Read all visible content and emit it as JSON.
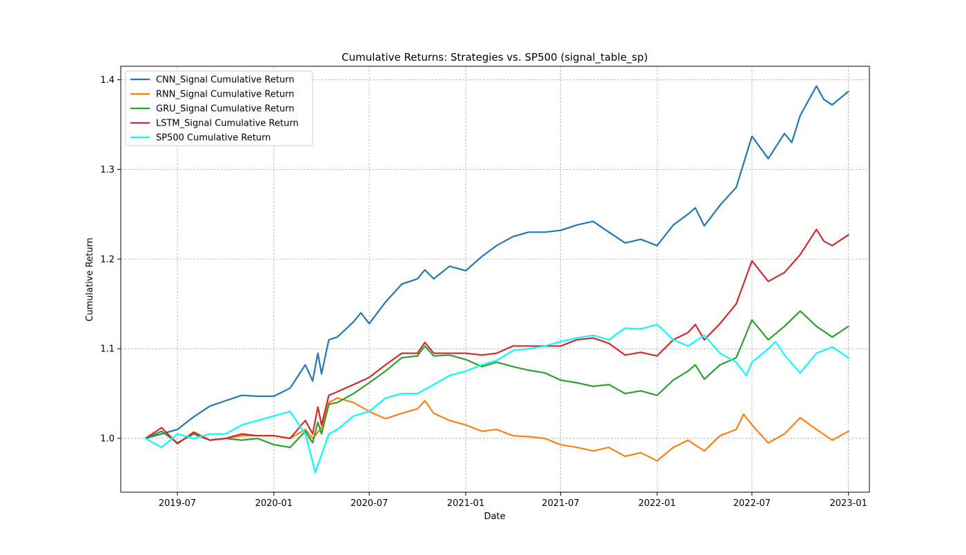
{
  "chart_data": {
    "type": "line",
    "title": "Cumulative Returns: Strategies vs. SP500 (signal_table_sp)",
    "xlabel": "Date",
    "ylabel": "Cumulative Return",
    "x_ticks": [
      "2019-07",
      "2020-01",
      "2020-07",
      "2021-01",
      "2021-07",
      "2022-01",
      "2022-07",
      "2023-01"
    ],
    "y_ticks": [
      "1.0",
      "1.1",
      "1.2",
      "1.3",
      "1.4"
    ],
    "xlim": [
      "2019-03-15",
      "2023-02-10"
    ],
    "ylim": [
      0.94,
      1.415
    ],
    "grid": true,
    "legend_position": "top-left",
    "series": [
      {
        "name": "CNN_Signal Cumulative Return",
        "color": "#1f77b4",
        "points": [
          [
            "2019-05-01",
            1.0
          ],
          [
            "2019-06-01",
            1.005
          ],
          [
            "2019-07-01",
            1.01
          ],
          [
            "2019-08-01",
            1.024
          ],
          [
            "2019-09-01",
            1.036
          ],
          [
            "2019-10-01",
            1.042
          ],
          [
            "2019-11-01",
            1.048
          ],
          [
            "2019-12-01",
            1.047
          ],
          [
            "2020-01-01",
            1.047
          ],
          [
            "2020-02-01",
            1.056
          ],
          [
            "2020-03-01",
            1.082
          ],
          [
            "2020-03-15",
            1.064
          ],
          [
            "2020-03-25",
            1.095
          ],
          [
            "2020-04-01",
            1.072
          ],
          [
            "2020-04-15",
            1.11
          ],
          [
            "2020-05-01",
            1.113
          ],
          [
            "2020-06-01",
            1.13
          ],
          [
            "2020-06-15",
            1.14
          ],
          [
            "2020-07-01",
            1.128
          ],
          [
            "2020-08-01",
            1.152
          ],
          [
            "2020-09-01",
            1.172
          ],
          [
            "2020-10-01",
            1.178
          ],
          [
            "2020-10-15",
            1.188
          ],
          [
            "2020-11-01",
            1.178
          ],
          [
            "2020-12-01",
            1.192
          ],
          [
            "2021-01-01",
            1.187
          ],
          [
            "2021-02-01",
            1.203
          ],
          [
            "2021-03-01",
            1.215
          ],
          [
            "2021-04-01",
            1.225
          ],
          [
            "2021-05-01",
            1.23
          ],
          [
            "2021-06-01",
            1.23
          ],
          [
            "2021-07-01",
            1.232
          ],
          [
            "2021-08-01",
            1.238
          ],
          [
            "2021-09-01",
            1.242
          ],
          [
            "2021-10-01",
            1.23
          ],
          [
            "2021-11-01",
            1.218
          ],
          [
            "2021-12-01",
            1.222
          ],
          [
            "2022-01-01",
            1.215
          ],
          [
            "2022-02-01",
            1.238
          ],
          [
            "2022-03-01",
            1.25
          ],
          [
            "2022-03-15",
            1.257
          ],
          [
            "2022-04-01",
            1.237
          ],
          [
            "2022-05-01",
            1.26
          ],
          [
            "2022-06-01",
            1.28
          ],
          [
            "2022-07-01",
            1.337
          ],
          [
            "2022-08-01",
            1.312
          ],
          [
            "2022-09-01",
            1.34
          ],
          [
            "2022-09-15",
            1.33
          ],
          [
            "2022-10-01",
            1.36
          ],
          [
            "2022-11-01",
            1.393
          ],
          [
            "2022-11-15",
            1.378
          ],
          [
            "2022-12-01",
            1.372
          ],
          [
            "2023-01-01",
            1.387
          ]
        ]
      },
      {
        "name": "RNN_Signal Cumulative Return",
        "color": "#ff7f0e",
        "points": [
          [
            "2019-05-01",
            1.0
          ],
          [
            "2019-06-01",
            1.008
          ],
          [
            "2019-07-01",
            0.995
          ],
          [
            "2019-08-01",
            1.005
          ],
          [
            "2019-09-01",
            0.998
          ],
          [
            "2019-10-01",
            1.0
          ],
          [
            "2019-11-01",
            1.003
          ],
          [
            "2019-12-01",
            1.003
          ],
          [
            "2020-01-01",
            1.003
          ],
          [
            "2020-02-01",
            1.0
          ],
          [
            "2020-03-01",
            1.01
          ],
          [
            "2020-03-15",
            1.0
          ],
          [
            "2020-04-01",
            1.012
          ],
          [
            "2020-04-15",
            1.04
          ],
          [
            "2020-05-01",
            1.045
          ],
          [
            "2020-06-01",
            1.04
          ],
          [
            "2020-07-01",
            1.03
          ],
          [
            "2020-08-01",
            1.022
          ],
          [
            "2020-09-01",
            1.028
          ],
          [
            "2020-10-01",
            1.033
          ],
          [
            "2020-10-15",
            1.042
          ],
          [
            "2020-11-01",
            1.028
          ],
          [
            "2020-12-01",
            1.02
          ],
          [
            "2021-01-01",
            1.015
          ],
          [
            "2021-02-01",
            1.008
          ],
          [
            "2021-03-01",
            1.01
          ],
          [
            "2021-04-01",
            1.003
          ],
          [
            "2021-05-01",
            1.002
          ],
          [
            "2021-06-01",
            1.0
          ],
          [
            "2021-07-01",
            0.993
          ],
          [
            "2021-08-01",
            0.99
          ],
          [
            "2021-09-01",
            0.986
          ],
          [
            "2021-10-01",
            0.99
          ],
          [
            "2021-11-01",
            0.98
          ],
          [
            "2021-12-01",
            0.984
          ],
          [
            "2022-01-01",
            0.975
          ],
          [
            "2022-02-01",
            0.99
          ],
          [
            "2022-03-01",
            0.998
          ],
          [
            "2022-04-01",
            0.986
          ],
          [
            "2022-05-01",
            1.003
          ],
          [
            "2022-06-01",
            1.01
          ],
          [
            "2022-06-15",
            1.027
          ],
          [
            "2022-07-01",
            1.015
          ],
          [
            "2022-08-01",
            0.995
          ],
          [
            "2022-09-01",
            1.005
          ],
          [
            "2022-10-01",
            1.023
          ],
          [
            "2022-11-01",
            1.01
          ],
          [
            "2022-12-01",
            0.998
          ],
          [
            "2023-01-01",
            1.008
          ]
        ]
      },
      {
        "name": "GRU_Signal Cumulative Return",
        "color": "#2ca02c",
        "points": [
          [
            "2019-05-01",
            1.0
          ],
          [
            "2019-06-01",
            1.008
          ],
          [
            "2019-07-01",
            0.995
          ],
          [
            "2019-08-01",
            1.005
          ],
          [
            "2019-09-01",
            0.998
          ],
          [
            "2019-10-01",
            1.0
          ],
          [
            "2019-11-01",
            0.998
          ],
          [
            "2019-12-01",
            1.0
          ],
          [
            "2020-01-01",
            0.993
          ],
          [
            "2020-02-01",
            0.99
          ],
          [
            "2020-03-01",
            1.008
          ],
          [
            "2020-03-15",
            0.995
          ],
          [
            "2020-03-25",
            1.018
          ],
          [
            "2020-04-01",
            1.005
          ],
          [
            "2020-04-15",
            1.038
          ],
          [
            "2020-05-01",
            1.04
          ],
          [
            "2020-06-01",
            1.05
          ],
          [
            "2020-07-01",
            1.062
          ],
          [
            "2020-08-01",
            1.075
          ],
          [
            "2020-09-01",
            1.09
          ],
          [
            "2020-10-01",
            1.092
          ],
          [
            "2020-10-15",
            1.103
          ],
          [
            "2020-11-01",
            1.092
          ],
          [
            "2020-12-01",
            1.093
          ],
          [
            "2021-01-01",
            1.088
          ],
          [
            "2021-02-01",
            1.08
          ],
          [
            "2021-03-01",
            1.085
          ],
          [
            "2021-04-01",
            1.08
          ],
          [
            "2021-05-01",
            1.076
          ],
          [
            "2021-06-01",
            1.073
          ],
          [
            "2021-07-01",
            1.065
          ],
          [
            "2021-08-01",
            1.062
          ],
          [
            "2021-09-01",
            1.058
          ],
          [
            "2021-10-01",
            1.06
          ],
          [
            "2021-11-01",
            1.05
          ],
          [
            "2021-12-01",
            1.053
          ],
          [
            "2022-01-01",
            1.048
          ],
          [
            "2022-02-01",
            1.065
          ],
          [
            "2022-03-01",
            1.075
          ],
          [
            "2022-03-15",
            1.082
          ],
          [
            "2022-04-01",
            1.066
          ],
          [
            "2022-05-01",
            1.082
          ],
          [
            "2022-06-01",
            1.09
          ],
          [
            "2022-07-01",
            1.132
          ],
          [
            "2022-08-01",
            1.11
          ],
          [
            "2022-09-01",
            1.125
          ],
          [
            "2022-10-01",
            1.142
          ],
          [
            "2022-11-01",
            1.125
          ],
          [
            "2022-12-01",
            1.113
          ],
          [
            "2023-01-01",
            1.125
          ]
        ]
      },
      {
        "name": "LSTM_Signal Cumulative Return",
        "color": "#d62728",
        "points": [
          [
            "2019-05-01",
            1.0
          ],
          [
            "2019-06-01",
            1.012
          ],
          [
            "2019-07-01",
            0.994
          ],
          [
            "2019-08-01",
            1.007
          ],
          [
            "2019-09-01",
            0.998
          ],
          [
            "2019-10-01",
            1.0
          ],
          [
            "2019-11-01",
            1.005
          ],
          [
            "2019-12-01",
            1.003
          ],
          [
            "2020-01-01",
            1.003
          ],
          [
            "2020-02-01",
            1.0
          ],
          [
            "2020-03-01",
            1.02
          ],
          [
            "2020-03-15",
            1.005
          ],
          [
            "2020-03-25",
            1.035
          ],
          [
            "2020-04-01",
            1.015
          ],
          [
            "2020-04-15",
            1.048
          ],
          [
            "2020-05-01",
            1.052
          ],
          [
            "2020-06-01",
            1.06
          ],
          [
            "2020-07-01",
            1.068
          ],
          [
            "2020-08-01",
            1.082
          ],
          [
            "2020-09-01",
            1.095
          ],
          [
            "2020-10-01",
            1.095
          ],
          [
            "2020-10-15",
            1.107
          ],
          [
            "2020-11-01",
            1.095
          ],
          [
            "2020-12-01",
            1.095
          ],
          [
            "2021-01-01",
            1.095
          ],
          [
            "2021-02-01",
            1.093
          ],
          [
            "2021-03-01",
            1.095
          ],
          [
            "2021-04-01",
            1.103
          ],
          [
            "2021-05-01",
            1.103
          ],
          [
            "2021-06-01",
            1.103
          ],
          [
            "2021-07-01",
            1.103
          ],
          [
            "2021-08-01",
            1.11
          ],
          [
            "2021-09-01",
            1.112
          ],
          [
            "2021-10-01",
            1.106
          ],
          [
            "2021-11-01",
            1.093
          ],
          [
            "2021-12-01",
            1.096
          ],
          [
            "2022-01-01",
            1.092
          ],
          [
            "2022-02-01",
            1.11
          ],
          [
            "2022-03-01",
            1.118
          ],
          [
            "2022-03-15",
            1.127
          ],
          [
            "2022-04-01",
            1.11
          ],
          [
            "2022-05-01",
            1.128
          ],
          [
            "2022-06-01",
            1.15
          ],
          [
            "2022-07-01",
            1.198
          ],
          [
            "2022-08-01",
            1.175
          ],
          [
            "2022-09-01",
            1.185
          ],
          [
            "2022-10-01",
            1.205
          ],
          [
            "2022-11-01",
            1.233
          ],
          [
            "2022-11-15",
            1.22
          ],
          [
            "2022-12-01",
            1.215
          ],
          [
            "2023-01-01",
            1.227
          ]
        ]
      },
      {
        "name": "SP500 Cumulative Return",
        "color": "#00ffff",
        "points": [
          [
            "2019-05-01",
            1.0
          ],
          [
            "2019-06-01",
            0.99
          ],
          [
            "2019-07-01",
            1.005
          ],
          [
            "2019-08-01",
            1.0
          ],
          [
            "2019-09-01",
            1.005
          ],
          [
            "2019-10-01",
            1.005
          ],
          [
            "2019-11-01",
            1.015
          ],
          [
            "2019-12-01",
            1.02
          ],
          [
            "2020-01-01",
            1.025
          ],
          [
            "2020-02-01",
            1.03
          ],
          [
            "2020-03-01",
            1.005
          ],
          [
            "2020-03-20",
            0.962
          ],
          [
            "2020-04-01",
            0.982
          ],
          [
            "2020-04-15",
            1.005
          ],
          [
            "2020-05-01",
            1.01
          ],
          [
            "2020-06-01",
            1.025
          ],
          [
            "2020-07-01",
            1.03
          ],
          [
            "2020-08-01",
            1.045
          ],
          [
            "2020-09-01",
            1.05
          ],
          [
            "2020-10-01",
            1.05
          ],
          [
            "2020-11-01",
            1.06
          ],
          [
            "2020-12-01",
            1.07
          ],
          [
            "2021-01-01",
            1.075
          ],
          [
            "2021-02-01",
            1.082
          ],
          [
            "2021-03-01",
            1.087
          ],
          [
            "2021-04-01",
            1.098
          ],
          [
            "2021-05-01",
            1.1
          ],
          [
            "2021-06-01",
            1.103
          ],
          [
            "2021-07-01",
            1.108
          ],
          [
            "2021-08-01",
            1.112
          ],
          [
            "2021-09-01",
            1.115
          ],
          [
            "2021-10-01",
            1.11
          ],
          [
            "2021-11-01",
            1.123
          ],
          [
            "2021-12-01",
            1.122
          ],
          [
            "2022-01-01",
            1.127
          ],
          [
            "2022-02-01",
            1.11
          ],
          [
            "2022-03-01",
            1.103
          ],
          [
            "2022-04-01",
            1.115
          ],
          [
            "2022-05-01",
            1.095
          ],
          [
            "2022-06-01",
            1.085
          ],
          [
            "2022-06-20",
            1.07
          ],
          [
            "2022-07-01",
            1.085
          ],
          [
            "2022-08-01",
            1.1
          ],
          [
            "2022-08-15",
            1.108
          ],
          [
            "2022-09-01",
            1.093
          ],
          [
            "2022-10-01",
            1.073
          ],
          [
            "2022-11-01",
            1.095
          ],
          [
            "2022-12-01",
            1.102
          ],
          [
            "2023-01-01",
            1.09
          ]
        ]
      }
    ]
  }
}
